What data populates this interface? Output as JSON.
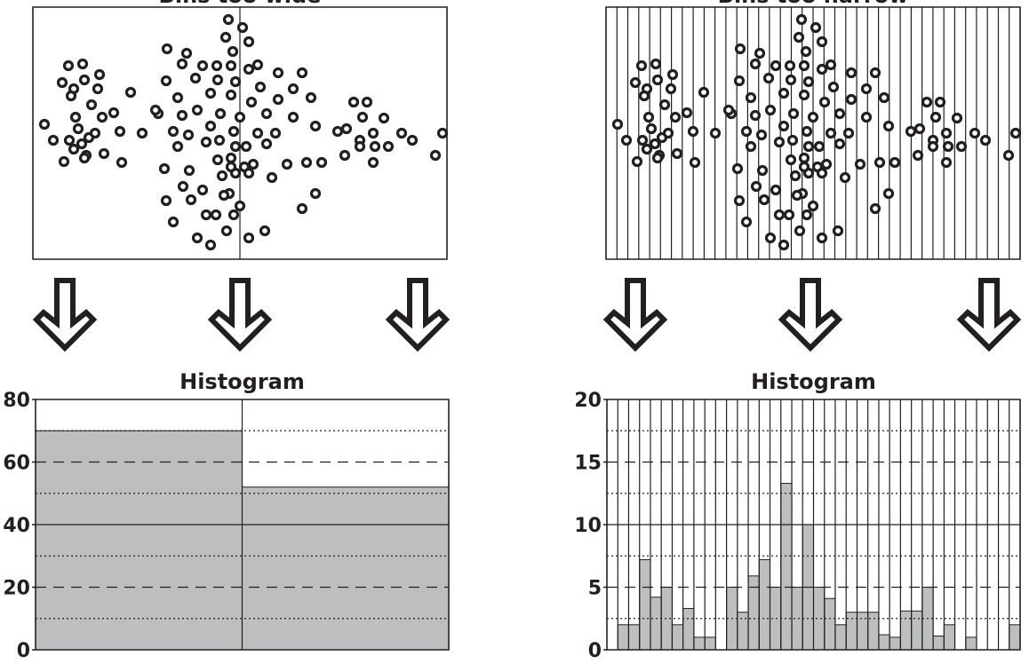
{
  "chart_data": [
    {
      "type": "scatter",
      "title": "Bins too wide",
      "x": [
        77,
        93,
        112,
        70,
        83,
        95,
        110,
        80,
        103,
        50,
        60,
        72,
        78,
        85,
        88,
        92,
        97,
        100,
        107,
        115,
        117,
        128,
        135,
        137,
        147,
        160,
        95,
        83,
        257,
        273,
        254,
        280,
        188,
        210,
        262,
        205,
        228,
        244,
        260,
        280,
        290,
        313,
        340,
        187,
        220,
        245,
        265,
        293,
        330,
        313,
        200,
        237,
        260,
        283,
        350,
        178,
        205,
        222,
        248,
        270,
        300,
        330,
        195,
        212,
        237,
        263,
        290,
        310,
        355,
        200,
        232,
        247,
        265,
        277,
        300,
        185,
        213,
        245,
        260,
        275,
        285,
        323,
        345,
        362,
        206,
        228,
        250,
        265,
        280,
        306,
        187,
        215,
        258,
        270,
        355,
        195,
        232,
        243,
        263,
        222,
        237,
        255,
        280,
        298,
        340,
        175,
        260,
        252,
        398,
        413,
        390,
        408,
        380,
        388,
        405,
        420,
        432,
        437,
        452,
        420,
        464,
        490,
        498,
        405,
        422
      ],
      "y": [
        74,
        72,
        84,
        93,
        100,
        90,
        100,
        108,
        118,
        140,
        158,
        182,
        158,
        132,
        145,
        162,
        175,
        155,
        150,
        132,
        173,
        127,
        148,
        183,
        104,
        150,
        178,
        168,
        22,
        31,
        42,
        47,
        55,
        60,
        58,
        72,
        74,
        74,
        74,
        78,
        73,
        82,
        82,
        91,
        88,
        90,
        92,
        98,
        100,
        112,
        110,
        105,
        107,
        115,
        110,
        128,
        130,
        124,
        128,
        132,
        128,
        132,
        148,
        152,
        142,
        148,
        150,
        150,
        142,
        165,
        160,
        158,
        165,
        165,
        162,
        190,
        192,
        180,
        178,
        188,
        185,
        185,
        183,
        183,
        210,
        214,
        198,
        195,
        195,
        200,
        226,
        225,
        218,
        232,
        218,
        250,
        242,
        242,
        242,
        268,
        276,
        260,
        268,
        260,
        235,
        124,
        188,
        220,
        115,
        115,
        145,
        132,
        148,
        175,
        158,
        150,
        133,
        165,
        150,
        183,
        158,
        175,
        150,
        165,
        165
      ],
      "xlim": [
        37,
        503
      ],
      "ylim": [
        292,
        8
      ],
      "bins": [
        37,
        270,
        503
      ]
    },
    {
      "type": "scatter",
      "title": "Bins too narrow",
      "x": [
        77,
        93,
        112,
        70,
        83,
        95,
        110,
        80,
        103,
        50,
        60,
        72,
        78,
        85,
        88,
        92,
        97,
        100,
        107,
        115,
        117,
        128,
        135,
        137,
        147,
        160,
        95,
        83,
        257,
        273,
        254,
        280,
        188,
        210,
        262,
        205,
        228,
        244,
        260,
        280,
        290,
        313,
        340,
        187,
        220,
        245,
        265,
        293,
        330,
        313,
        200,
        237,
        260,
        283,
        350,
        178,
        205,
        222,
        248,
        270,
        300,
        330,
        195,
        212,
        237,
        263,
        290,
        310,
        355,
        200,
        232,
        247,
        265,
        277,
        300,
        185,
        213,
        245,
        260,
        275,
        285,
        323,
        345,
        362,
        206,
        228,
        250,
        265,
        280,
        306,
        187,
        215,
        258,
        270,
        355,
        195,
        232,
        243,
        263,
        222,
        237,
        255,
        280,
        298,
        340,
        175,
        260,
        252,
        398,
        413,
        390,
        408,
        380,
        388,
        405,
        420,
        432,
        437,
        452,
        420,
        464,
        490,
        498,
        405,
        422
      ],
      "y": [
        74,
        72,
        84,
        93,
        100,
        90,
        100,
        108,
        118,
        140,
        158,
        182,
        158,
        132,
        145,
        162,
        175,
        155,
        150,
        132,
        173,
        127,
        148,
        183,
        104,
        150,
        178,
        168,
        22,
        31,
        42,
        47,
        55,
        60,
        58,
        72,
        74,
        74,
        74,
        78,
        73,
        82,
        82,
        91,
        88,
        90,
        92,
        98,
        100,
        112,
        110,
        105,
        107,
        115,
        110,
        128,
        130,
        124,
        128,
        132,
        128,
        132,
        148,
        152,
        142,
        148,
        150,
        150,
        142,
        165,
        160,
        158,
        165,
        165,
        162,
        190,
        192,
        180,
        178,
        188,
        185,
        185,
        183,
        183,
        210,
        214,
        198,
        195,
        195,
        200,
        226,
        225,
        218,
        232,
        218,
        250,
        242,
        242,
        242,
        268,
        276,
        260,
        268,
        260,
        235,
        124,
        188,
        220,
        115,
        115,
        145,
        132,
        148,
        175,
        158,
        150,
        133,
        165,
        150,
        183,
        158,
        175,
        150,
        165,
        165
      ],
      "xlim": [
        37,
        503
      ],
      "ylim": [
        292,
        8
      ],
      "bins": [
        37.0,
        49.3,
        61.5,
        73.8,
        86.1,
        98.3,
        110.6,
        122.8,
        135.1,
        147.4,
        159.6,
        171.9,
        184.2,
        196.4,
        208.7,
        220.9,
        233.2,
        245.5,
        257.7,
        270.0,
        282.3,
        294.5,
        306.8,
        319.1,
        331.3,
        343.6,
        355.8,
        368.1,
        380.4,
        392.6,
        404.9,
        417.2,
        429.4,
        441.7,
        453.9,
        466.2,
        478.5,
        490.7,
        503.0
      ]
    },
    {
      "type": "histogram",
      "title": "Histogram",
      "color": "#bcbec0",
      "bins": [
        37,
        270,
        503
      ],
      "values": [
        70,
        52
      ],
      "xlim": [
        37,
        503
      ],
      "ylim": [
        0,
        80
      ],
      "yticks": [
        0,
        20,
        40,
        60,
        80
      ],
      "minor_gridlines": [
        10,
        30,
        50,
        70
      ]
    },
    {
      "type": "histogram",
      "title": "Histogram",
      "color": "#bcbec0",
      "bins": [
        37.0,
        49.3,
        61.5,
        73.8,
        86.1,
        98.3,
        110.6,
        122.8,
        135.1,
        147.4,
        159.6,
        171.9,
        184.2,
        196.4,
        208.7,
        220.9,
        233.2,
        245.5,
        257.7,
        270.0,
        282.3,
        294.5,
        306.8,
        319.1,
        331.3,
        343.6,
        355.8,
        368.1,
        380.4,
        392.6,
        404.9,
        417.2,
        429.4,
        441.7,
        453.9,
        466.2,
        478.5,
        490.7,
        503.0
      ],
      "values": [
        0,
        2,
        2,
        7.2,
        4.2,
        5,
        2,
        3.3,
        1,
        1,
        0,
        5,
        3,
        5.9,
        7.2,
        5,
        13.3,
        5,
        10,
        5,
        4.1,
        2,
        3,
        3,
        3,
        1.2,
        1,
        3.1,
        3.1,
        5,
        1.1,
        2,
        0,
        1,
        0,
        0,
        0,
        2
      ],
      "xlim": [
        37,
        503
      ],
      "ylim": [
        0,
        20
      ],
      "yticks": [
        0,
        5,
        10,
        15,
        20
      ],
      "minor_gridlines": [
        2.5,
        7.5,
        12.5,
        17.5
      ]
    }
  ]
}
